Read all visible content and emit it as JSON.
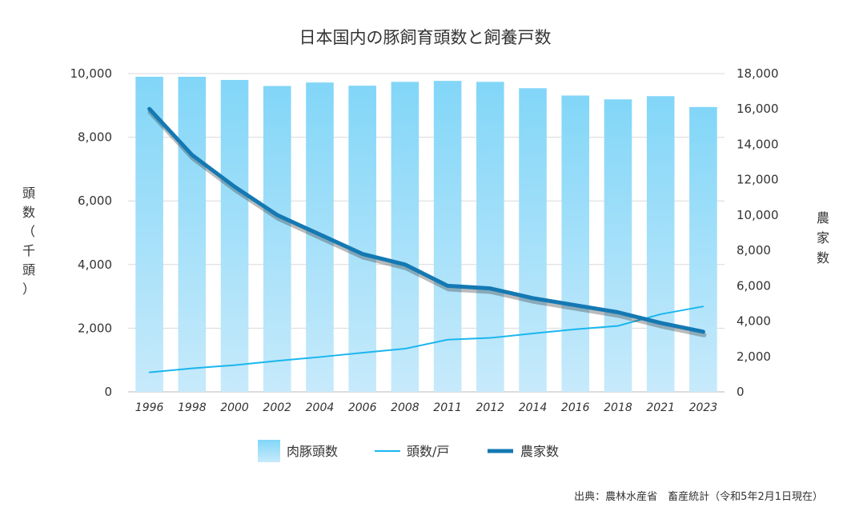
{
  "chart_data": {
    "type": "bar+line",
    "title": "日本国内の豚飼育頭数と飼養戸数",
    "categories": [
      "1996",
      "1998",
      "2000",
      "2002",
      "2004",
      "2006",
      "2008",
      "2011",
      "2012",
      "2014",
      "2016",
      "2018",
      "2021",
      "2023"
    ],
    "series": [
      {
        "name": "肉豚頭数",
        "type": "bar",
        "axis": "left",
        "color": "#8fd8f8",
        "values": [
          9900,
          9900,
          9800,
          9610,
          9720,
          9620,
          9740,
          9770,
          9740,
          9540,
          9310,
          9190,
          9290,
          8950
        ]
      },
      {
        "name": "頭数/戸",
        "type": "line",
        "axis": "right",
        "color": "#1ab6ee",
        "values": [
          1100,
          1330,
          1510,
          1750,
          1970,
          2210,
          2440,
          2950,
          3050,
          3300,
          3540,
          3730,
          4390,
          4830
        ]
      },
      {
        "name": "農家数",
        "type": "line",
        "axis": "right",
        "color": "#1479b3",
        "values": [
          16000,
          13400,
          11600,
          10000,
          8900,
          7800,
          7200,
          6000,
          5850,
          5300,
          4900,
          4500,
          3900,
          3400
        ]
      }
    ],
    "left_axis": {
      "label": "頭数（千頭）",
      "range": [
        0,
        10000
      ],
      "ticks": [
        "0",
        "2,000",
        "4,000",
        "6,000",
        "8,000",
        "10,000"
      ]
    },
    "right_axis": {
      "label": "農家数",
      "range": [
        0,
        18000
      ],
      "ticks": [
        "0",
        "2,000",
        "4,000",
        "6,000",
        "8,000",
        "10,000",
        "12,000",
        "14,000",
        "16,000",
        "18,000"
      ]
    },
    "grid": "horizontal",
    "legend": [
      "肉豚頭数",
      "頭数/戸",
      "農家数"
    ],
    "legend_position": "bottom",
    "source": "出典：農林水産省　畜産統計（令和5年2月1日現在）"
  }
}
